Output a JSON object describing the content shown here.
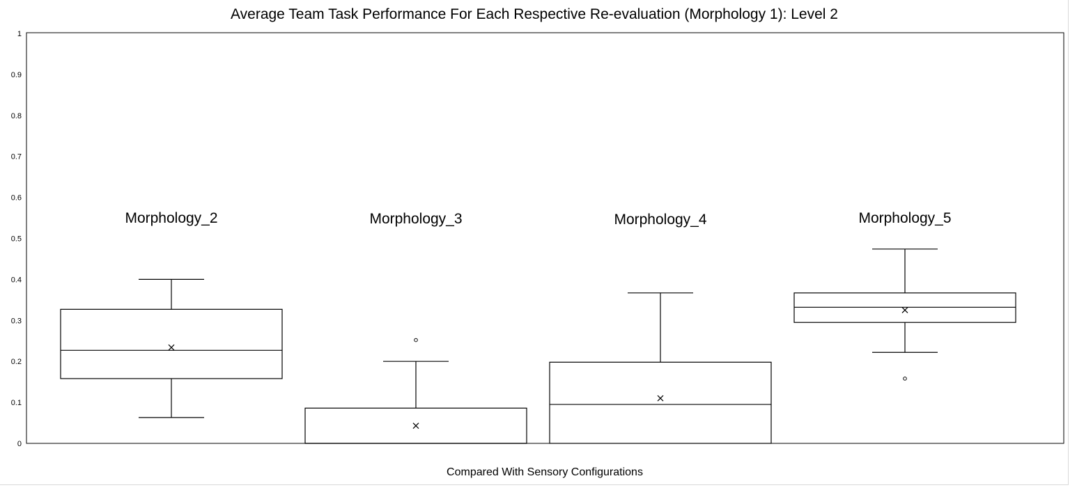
{
  "chart_data": {
    "type": "box",
    "title": "Average Team Task Performance For Each Respective Re-evaluation (Morphology 1): Level 2",
    "xlabel": "Compared With Sensory Configurations",
    "ylabel": "",
    "ylim": [
      0,
      1
    ],
    "yticks": [
      "0",
      "0.1",
      "0.2",
      "0.3",
      "0.4",
      "0.5",
      "0.6",
      "0.7",
      "0.8",
      "0.9",
      "1"
    ],
    "grid": false,
    "boxes": [
      {
        "label": "Morphology_2",
        "min": 0.063,
        "q1": 0.158,
        "median": 0.227,
        "q3": 0.327,
        "max": 0.4,
        "mean": 0.234,
        "outliers": []
      },
      {
        "label": "Morphology_3",
        "min": 0.0,
        "q1": 0.0,
        "median": 0.0,
        "q3": 0.086,
        "max": 0.2,
        "mean": 0.043,
        "outliers": [
          0.252
        ]
      },
      {
        "label": "Morphology_4",
        "min": 0.0,
        "q1": 0.0,
        "median": 0.095,
        "q3": 0.198,
        "max": 0.367,
        "mean": 0.11,
        "outliers": []
      },
      {
        "label": "Morphology_5",
        "min": 0.222,
        "q1": 0.295,
        "median": 0.332,
        "q3": 0.367,
        "max": 0.474,
        "mean": 0.325,
        "outliers": [
          0.158
        ]
      }
    ]
  }
}
